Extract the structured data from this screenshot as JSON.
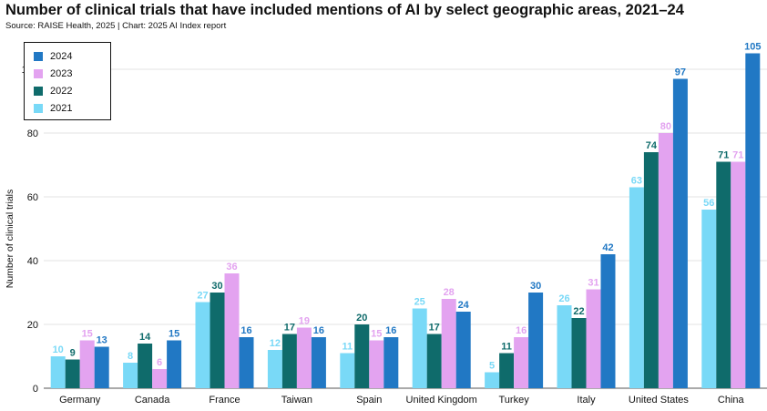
{
  "header": {
    "title": "Number of clinical trials that have included mentions of AI by select geographic areas, 2021–24",
    "source": "Source: RAISE Health, 2025 | Chart: 2025 AI Index report"
  },
  "legend": {
    "items": [
      {
        "label": "2024",
        "color": "#2178c4"
      },
      {
        "label": "2023",
        "color": "#e3a3f0"
      },
      {
        "label": "2022",
        "color": "#0f6b6b"
      },
      {
        "label": "2021",
        "color": "#79d9f7"
      }
    ]
  },
  "chart_data": {
    "type": "bar",
    "title": "Number of clinical trials that have included mentions of AI by select geographic areas, 2021–24",
    "xlabel": "",
    "ylabel": "Number of clinical trials",
    "ylim": [
      0,
      110
    ],
    "yticks": [
      0,
      20,
      40,
      60,
      80,
      100
    ],
    "grid": true,
    "legend_position": "top-left",
    "categories": [
      "Germany",
      "Canada",
      "France",
      "Taiwan",
      "Spain",
      "United Kingdom",
      "Turkey",
      "Italy",
      "United States",
      "China"
    ],
    "series": [
      {
        "name": "2021",
        "color": "#79d9f7",
        "values": [
          10,
          8,
          27,
          12,
          11,
          25,
          5,
          26,
          63,
          56
        ]
      },
      {
        "name": "2022",
        "color": "#0f6b6b",
        "values": [
          9,
          14,
          30,
          17,
          20,
          17,
          11,
          22,
          74,
          71
        ]
      },
      {
        "name": "2023",
        "color": "#e3a3f0",
        "values": [
          15,
          6,
          36,
          19,
          15,
          28,
          16,
          31,
          80,
          71
        ]
      },
      {
        "name": "2024",
        "color": "#2178c4",
        "values": [
          13,
          15,
          16,
          16,
          16,
          24,
          30,
          42,
          97,
          105
        ]
      }
    ]
  }
}
